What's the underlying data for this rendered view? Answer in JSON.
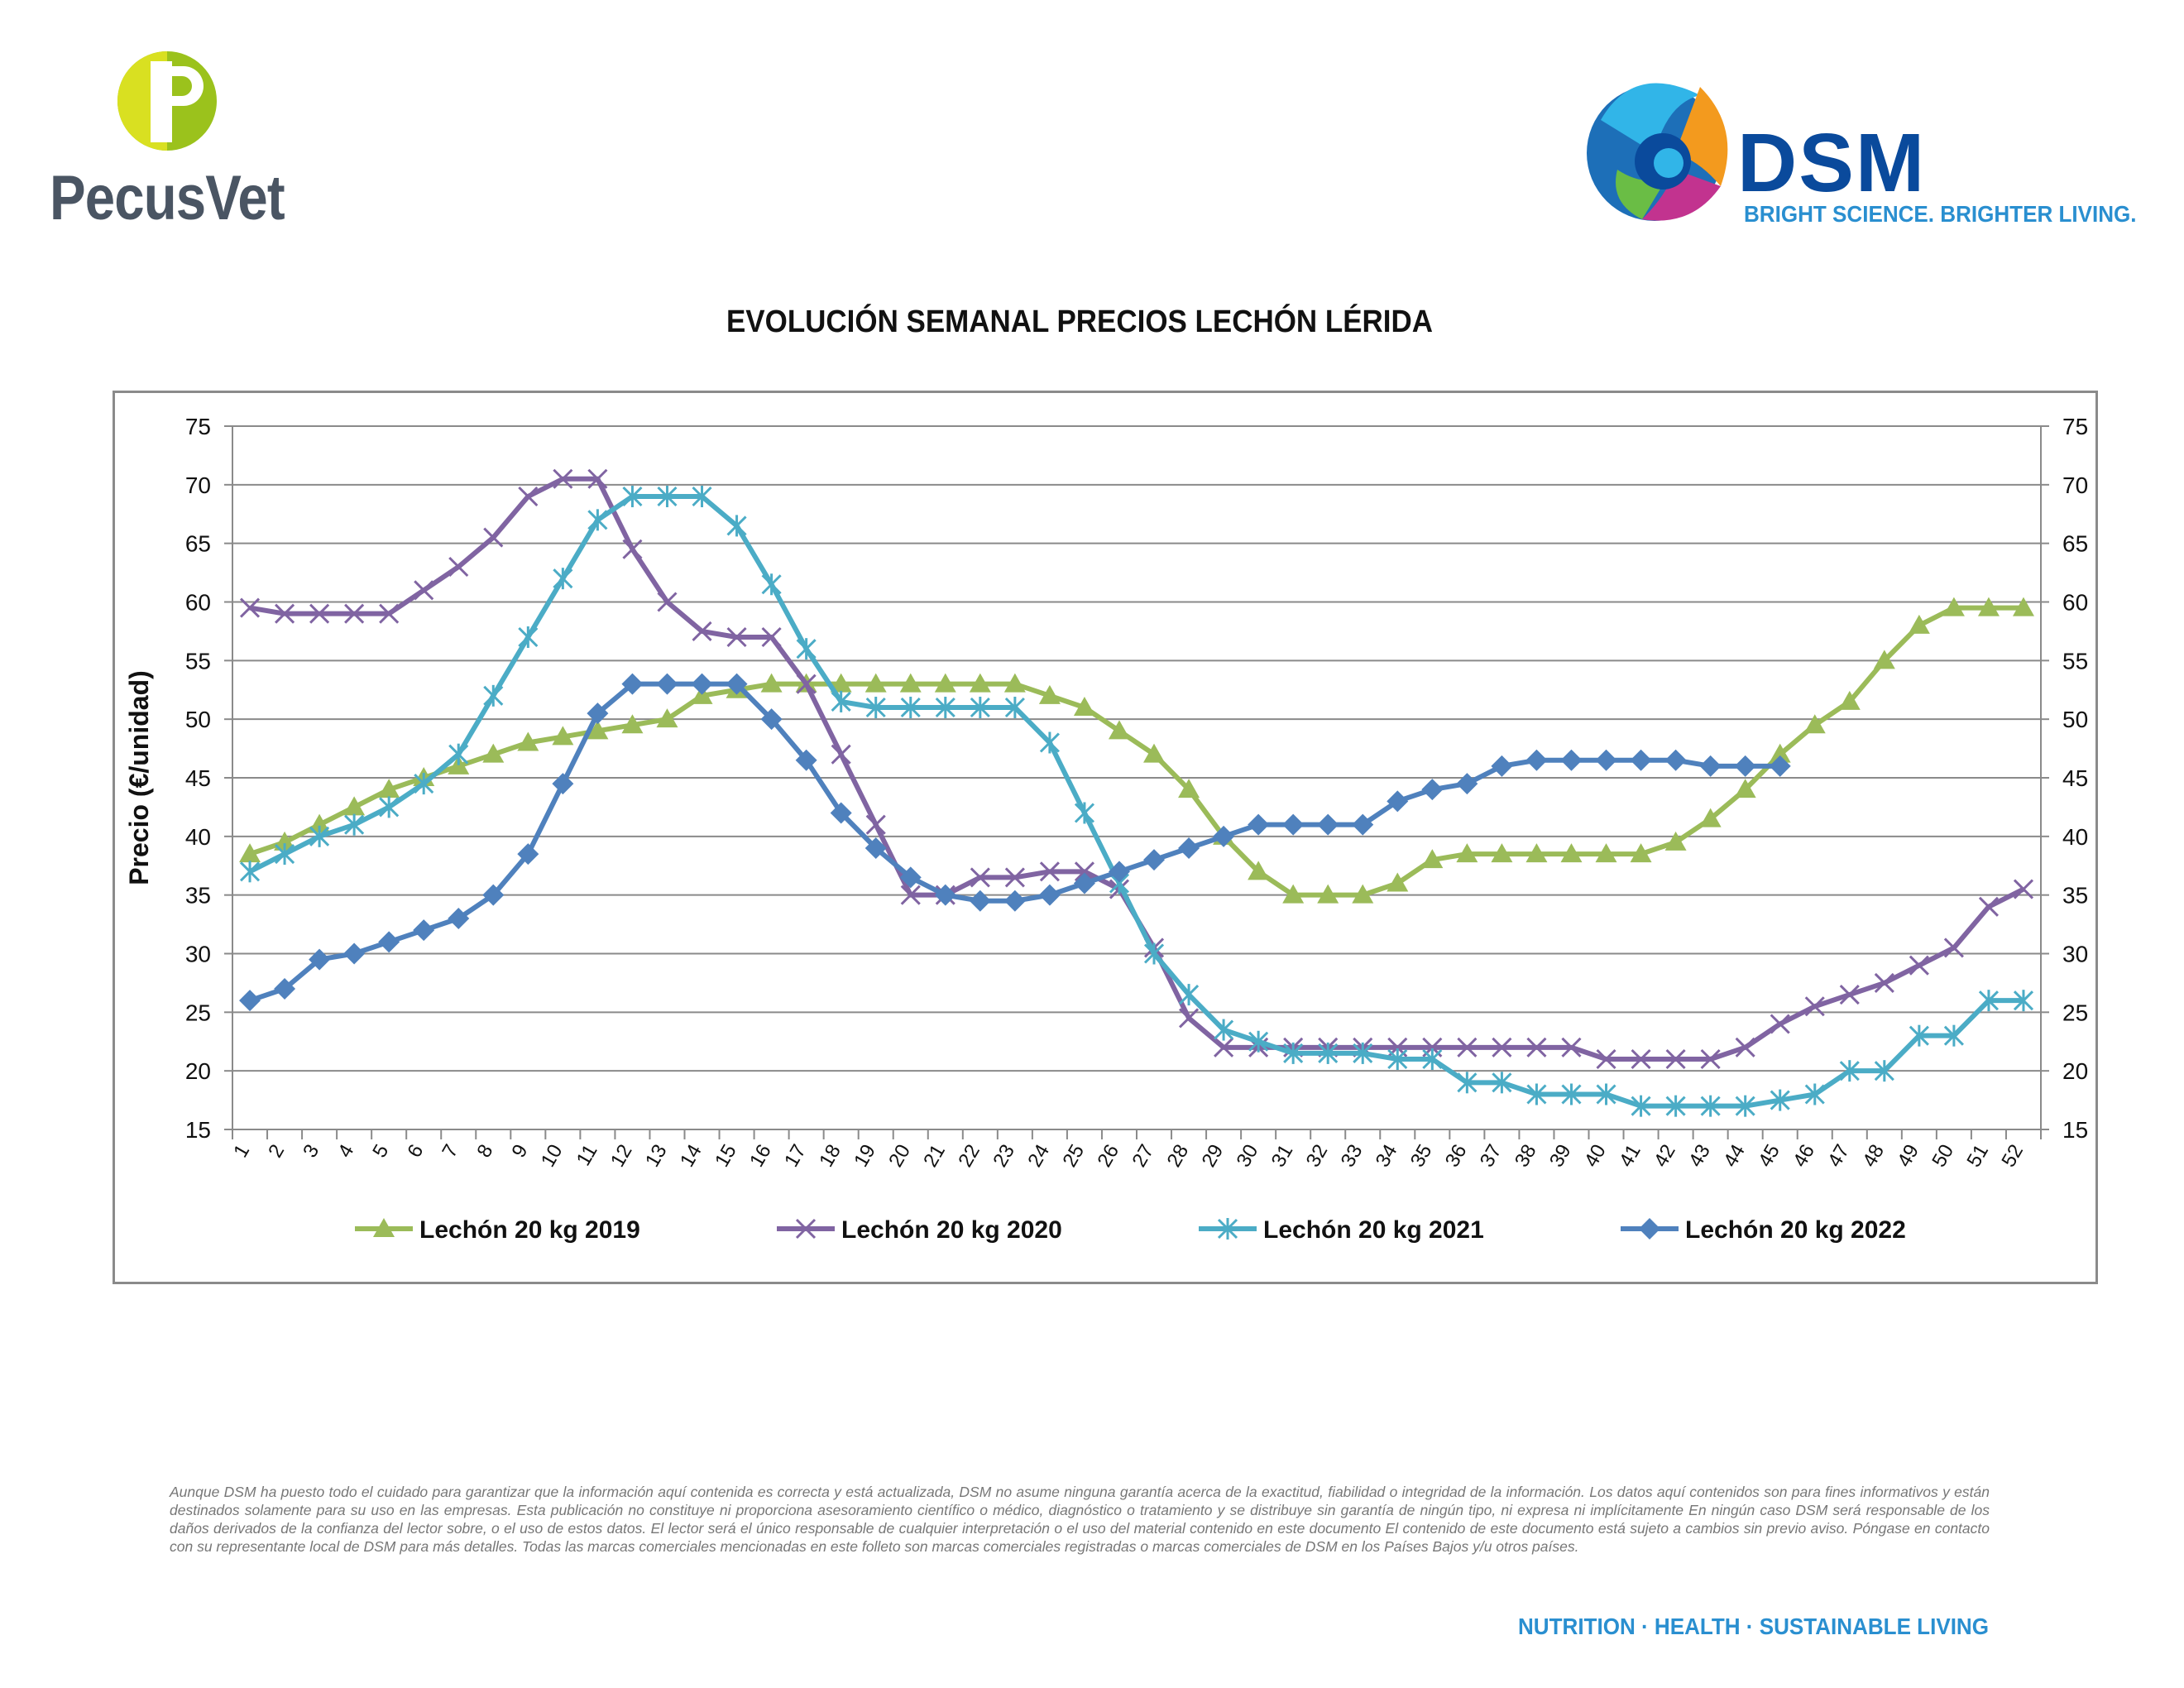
{
  "branding": {
    "left_logo_name": "PecusVet",
    "right_logo_name": "DSM",
    "right_tagline": "BRIGHT SCIENCE. BRIGHTER LIVING."
  },
  "footer": {
    "disclaimer": "Aunque DSM ha puesto todo el cuidado para garantizar que la información aquí contenida es correcta y está actualizada, DSM no asume ninguna garantía acerca de la exactitud, fiabilidad o integridad de la información. Los datos aquí contenidos son para fines informativos y están destinados solamente para su uso en las empresas. Esta publicación no constituye ni proporciona asesoramiento científico o médico, diagnóstico o tratamiento y se distribuye sin garantía de ningún tipo, ni expresa ni implícitamente En ningún caso DSM será responsable de los daños derivados de la confianza del lector sobre, o el uso de estos datos. El lector será el único responsable de cualquier interpretación o el uso del material contenido en este documento El contenido de este documento está sujeto a cambios sin previo aviso. Póngase en contacto con su representante local de DSM para más detalles. Todas las marcas comerciales mencionadas en este folleto son marcas comerciales registradas o marcas comerciales de DSM en los Países Bajos y/u otros países.",
    "slogan": "NUTRITION · HEALTH · SUSTAINABLE LIVING"
  },
  "chart_data": {
    "type": "line",
    "title": "EVOLUCIÓN SEMANAL PRECIOS LECHÓN LÉRIDA",
    "xlabel": "",
    "ylabel": "Precio (€/unidad)",
    "ylim": [
      15,
      75
    ],
    "yticks": [
      15,
      20,
      25,
      30,
      35,
      40,
      45,
      50,
      55,
      60,
      65,
      70,
      75
    ],
    "secondary_y_axis": true,
    "grid": "horizontal",
    "legend_position": "bottom",
    "x": [
      1,
      2,
      3,
      4,
      5,
      6,
      7,
      8,
      9,
      10,
      11,
      12,
      13,
      14,
      15,
      16,
      17,
      18,
      19,
      20,
      21,
      22,
      23,
      24,
      25,
      26,
      27,
      28,
      29,
      30,
      31,
      32,
      33,
      34,
      35,
      36,
      37,
      38,
      39,
      40,
      41,
      42,
      43,
      44,
      45,
      46,
      47,
      48,
      49,
      50,
      51,
      52
    ],
    "series": [
      {
        "name": "Lechón 20 kg 2019",
        "color": "#9bbb59",
        "marker": "triangle",
        "values": [
          38.5,
          39.5,
          41,
          42.5,
          44,
          45,
          46,
          47,
          48,
          48.5,
          49,
          49.5,
          50,
          52,
          52.5,
          53,
          53,
          53,
          53,
          53,
          53,
          53,
          53,
          52,
          51,
          49,
          47,
          44,
          40,
          37,
          35,
          35,
          35,
          36,
          38,
          38.5,
          38.5,
          38.5,
          38.5,
          38.5,
          38.5,
          39.5,
          41.5,
          44,
          47,
          49.5,
          51.5,
          55,
          58,
          59.5,
          59.5,
          59.5
        ]
      },
      {
        "name": "Lechón 20 kg 2020",
        "color": "#8064a2",
        "marker": "x",
        "values": [
          59.5,
          59,
          59,
          59,
          59,
          61,
          63,
          65.5,
          69,
          70.5,
          70.5,
          64.5,
          60,
          57.5,
          57,
          57,
          53,
          47,
          41,
          35,
          35,
          36.5,
          36.5,
          37,
          37,
          35.5,
          30.5,
          24.5,
          22,
          22,
          22,
          22,
          22,
          22,
          22,
          22,
          22,
          22,
          22,
          21,
          21,
          21,
          21,
          22,
          24,
          25.5,
          26.5,
          27.5,
          29,
          30.5,
          34,
          35.5
        ]
      },
      {
        "name": "Lechón 20 kg 2021",
        "color": "#4bacc6",
        "marker": "star",
        "values": [
          37,
          38.5,
          40,
          41,
          42.5,
          44.5,
          47,
          52,
          57,
          62,
          67,
          69,
          69,
          69,
          66.5,
          61.5,
          56,
          51.5,
          51,
          51,
          51,
          51,
          51,
          48,
          42,
          36,
          30,
          26.5,
          23.5,
          22.5,
          21.5,
          21.5,
          21.5,
          21,
          21,
          19,
          19,
          18,
          18,
          18,
          17,
          17,
          17,
          17,
          17.5,
          18,
          20,
          20,
          23,
          23,
          26,
          26
        ]
      },
      {
        "name": "Lechón 20 kg 2022",
        "color": "#4f81bd",
        "marker": "diamond",
        "values": [
          26,
          27,
          29.5,
          30,
          31,
          32,
          33,
          35,
          38.5,
          44.5,
          50.5,
          53,
          53,
          53,
          53,
          50,
          46.5,
          42,
          39,
          36.5,
          35,
          34.5,
          34.5,
          35,
          36,
          37,
          38,
          39,
          40,
          41,
          41,
          41,
          41,
          43,
          44,
          44.5,
          46,
          46.5,
          46.5,
          46.5,
          46.5,
          46.5,
          46,
          46,
          46,
          null,
          null,
          null,
          null,
          null,
          null,
          null
        ]
      }
    ]
  }
}
